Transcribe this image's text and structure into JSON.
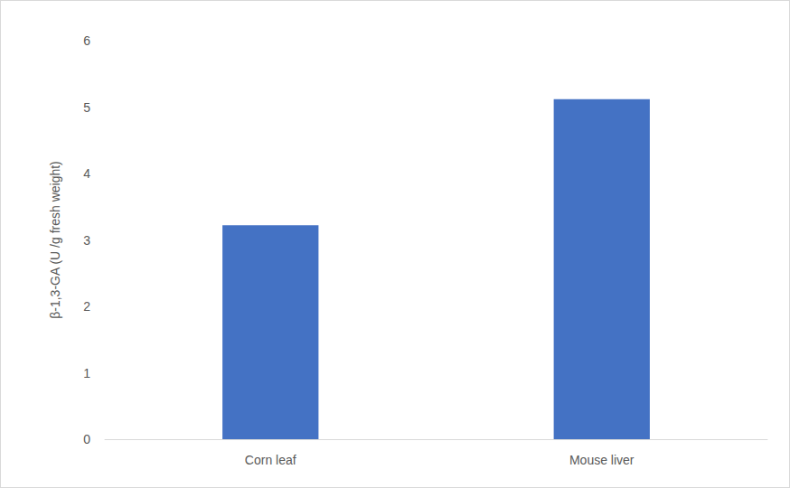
{
  "chart_data": {
    "type": "bar",
    "categories": [
      "Corn leaf",
      "Mouse liver"
    ],
    "values": [
      3.22,
      5.12
    ],
    "color": "#4472c4",
    "y_label": "β-1,3-GA (U /g fresh weight)",
    "ylim": [
      0,
      6
    ],
    "yticks": [
      0,
      1,
      2,
      3,
      4,
      5,
      6
    ],
    "grid": false
  }
}
